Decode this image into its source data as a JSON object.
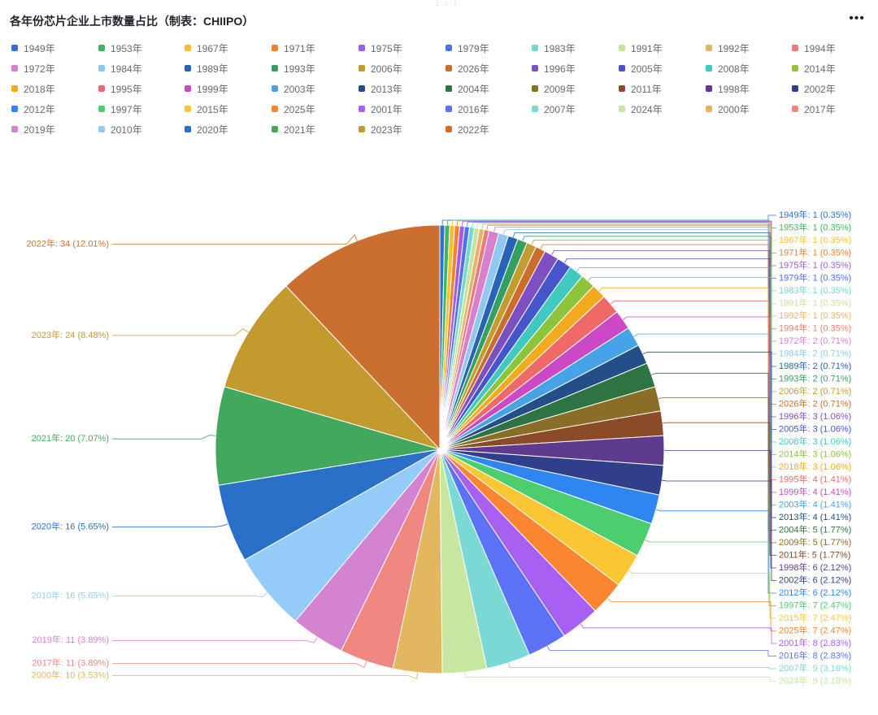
{
  "header": {
    "title": "各年份芯片企业上市数量占比（制表：CHIIPO）",
    "more_icon": "more-icon",
    "drag_icon": "drag-handle-icon"
  },
  "chart_data": {
    "type": "pie",
    "title": "各年份芯片企业上市数量占比（制表：CHIIPO）",
    "legend_position": "top",
    "legend_order": [
      "1949年",
      "1953年",
      "1967年",
      "1971年",
      "1975年",
      "1979年",
      "1983年",
      "1991年",
      "1992年",
      "1994年",
      "1972年",
      "1984年",
      "1989年",
      "1993年",
      "2006年",
      "2026年",
      "1996年",
      "2005年",
      "2008年",
      "2014年",
      "2018年",
      "1995年",
      "1999年",
      "2003年",
      "2013年",
      "2004年",
      "2009年",
      "2011年",
      "1998年",
      "2002年",
      "2012年",
      "1997年",
      "2015年",
      "2025年",
      "2001年",
      "2016年",
      "2007年",
      "2024年",
      "2000年",
      "2017年",
      "2019年",
      "2010年",
      "2020年",
      "2021年",
      "2023年",
      "2022年"
    ],
    "slices": [
      {
        "label": "1949年",
        "value": 1,
        "percent": "0.35%",
        "color": "#2f6fd6"
      },
      {
        "label": "1953年",
        "value": 1,
        "percent": "0.35%",
        "color": "#3bb85b"
      },
      {
        "label": "1967年",
        "value": 1,
        "percent": "0.35%",
        "color": "#f5c02b"
      },
      {
        "label": "1971年",
        "value": 1,
        "percent": "0.35%",
        "color": "#f5802f"
      },
      {
        "label": "1975年",
        "value": 1,
        "percent": "0.35%",
        "color": "#a25be8"
      },
      {
        "label": "1979年",
        "value": 1,
        "percent": "0.35%",
        "color": "#5170ee"
      },
      {
        "label": "1983年",
        "value": 1,
        "percent": "0.35%",
        "color": "#74d8d2"
      },
      {
        "label": "1991年",
        "value": 1,
        "percent": "0.35%",
        "color": "#c6e39a"
      },
      {
        "label": "1992年",
        "value": 1,
        "percent": "0.35%",
        "color": "#e3b469"
      },
      {
        "label": "1994年",
        "value": 1,
        "percent": "0.35%",
        "color": "#ef7a72"
      },
      {
        "label": "1972年",
        "value": 2,
        "percent": "0.71%",
        "color": "#d97fd0"
      },
      {
        "label": "1984年",
        "value": 2,
        "percent": "0.71%",
        "color": "#8fc8f3"
      },
      {
        "label": "1989年",
        "value": 2,
        "percent": "0.71%",
        "color": "#2764b8"
      },
      {
        "label": "1993年",
        "value": 2,
        "percent": "0.71%",
        "color": "#33a062"
      },
      {
        "label": "2006年",
        "value": 2,
        "percent": "0.71%",
        "color": "#c39b2e"
      },
      {
        "label": "2026年",
        "value": 2,
        "percent": "0.71%",
        "color": "#cc6d2d"
      },
      {
        "label": "1996年",
        "value": 3,
        "percent": "1.06%",
        "color": "#7e4fc2"
      },
      {
        "label": "2005年",
        "value": 3,
        "percent": "1.06%",
        "color": "#4456c9"
      },
      {
        "label": "2008年",
        "value": 3,
        "percent": "1.06%",
        "color": "#3fc9c0"
      },
      {
        "label": "2014年",
        "value": 3,
        "percent": "1.06%",
        "color": "#8cc43b"
      },
      {
        "label": "2018年",
        "value": 3,
        "percent": "1.06%",
        "color": "#f3aa1d"
      },
      {
        "label": "1995年",
        "value": 4,
        "percent": "1.41%",
        "color": "#ef6a66"
      },
      {
        "label": "1999年",
        "value": 4,
        "percent": "1.41%",
        "color": "#cc49c6"
      },
      {
        "label": "2003年",
        "value": 4,
        "percent": "1.41%",
        "color": "#45a3e6"
      },
      {
        "label": "2013年",
        "value": 4,
        "percent": "1.41%",
        "color": "#244e87"
      },
      {
        "label": "2004年",
        "value": 5,
        "percent": "1.77%",
        "color": "#2e7442"
      },
      {
        "label": "2009年",
        "value": 5,
        "percent": "1.77%",
        "color": "#8a6d26"
      },
      {
        "label": "2011年",
        "value": 5,
        "percent": "1.77%",
        "color": "#8b4a28"
      },
      {
        "label": "1998年",
        "value": 6,
        "percent": "2.12%",
        "color": "#5e3b8e"
      },
      {
        "label": "2002年",
        "value": 6,
        "percent": "2.12%",
        "color": "#2f3f8a"
      },
      {
        "label": "2012年",
        "value": 6,
        "percent": "2.12%",
        "color": "#2f86ef"
      },
      {
        "label": "1997年",
        "value": 7,
        "percent": "2.47%",
        "color": "#4ccd6e"
      },
      {
        "label": "2015年",
        "value": 7,
        "percent": "2.47%",
        "color": "#fbc633"
      },
      {
        "label": "2025年",
        "value": 7,
        "percent": "2.47%",
        "color": "#fb8530"
      },
      {
        "label": "2001年",
        "value": 8,
        "percent": "2.83%",
        "color": "#a760f2"
      },
      {
        "label": "2016年",
        "value": 8,
        "percent": "2.83%",
        "color": "#5d73f7"
      },
      {
        "label": "2007年",
        "value": 9,
        "percent": "3.18%",
        "color": "#7ad9d4"
      },
      {
        "label": "2024年",
        "value": 9,
        "percent": "3.18%",
        "color": "#c6e7a1"
      },
      {
        "label": "2000年",
        "value": 10,
        "percent": "3.53%",
        "color": "#e3b660"
      },
      {
        "label": "2017年",
        "value": 11,
        "percent": "3.89%",
        "color": "#f08780"
      },
      {
        "label": "2019年",
        "value": 11,
        "percent": "3.89%",
        "color": "#d483d0"
      },
      {
        "label": "2010年",
        "value": 16,
        "percent": "5.65%",
        "color": "#93ccf7"
      },
      {
        "label": "2020年",
        "value": 16,
        "percent": "5.65%",
        "color": "#2a70c9"
      },
      {
        "label": "2021年",
        "value": 20,
        "percent": "7.07%",
        "color": "#42a85e"
      },
      {
        "label": "2023年",
        "value": 24,
        "percent": "8.48%",
        "color": "#c29a2e"
      },
      {
        "label": "2022年",
        "value": 34,
        "percent": "12.01%",
        "color": "#cb6f30"
      }
    ]
  }
}
